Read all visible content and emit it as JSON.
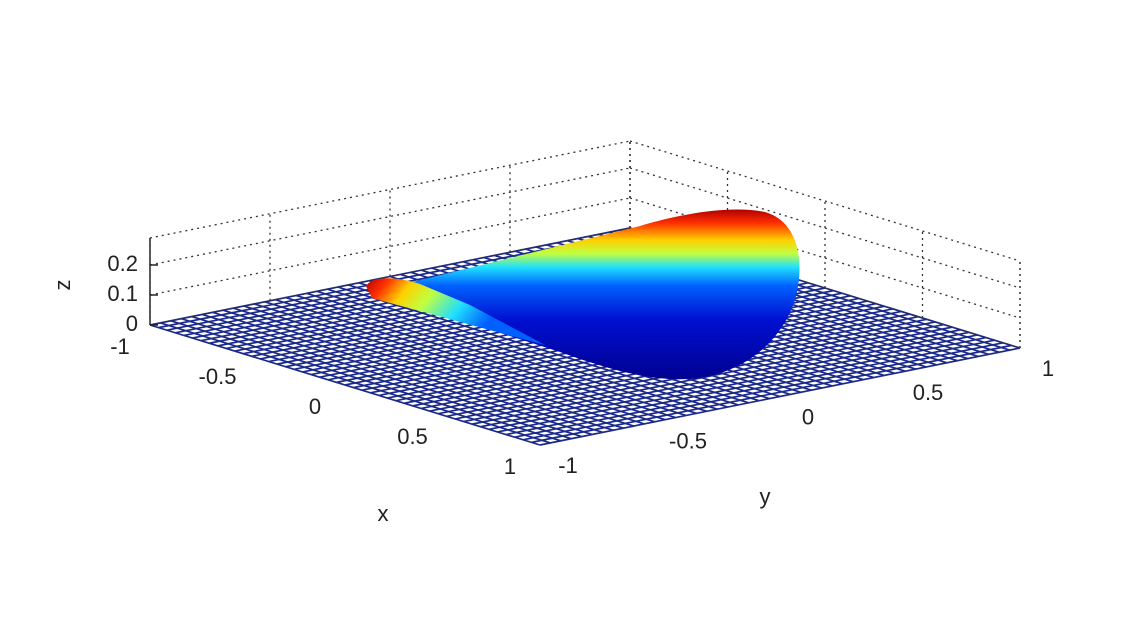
{
  "chart_data": {
    "type": "surface",
    "xlabel": "x",
    "ylabel": "y",
    "zlabel": "z",
    "xlim": [
      -1,
      1
    ],
    "ylim": [
      -1,
      1
    ],
    "zlim": [
      0,
      0.29
    ],
    "xticks": [
      -1,
      -0.5,
      0,
      0.5,
      1
    ],
    "yticks": [
      -1,
      -0.5,
      0,
      0.5,
      1
    ],
    "zticks": [
      0,
      0.1,
      0.2
    ],
    "grid": true,
    "colormap": "jet"
  }
}
